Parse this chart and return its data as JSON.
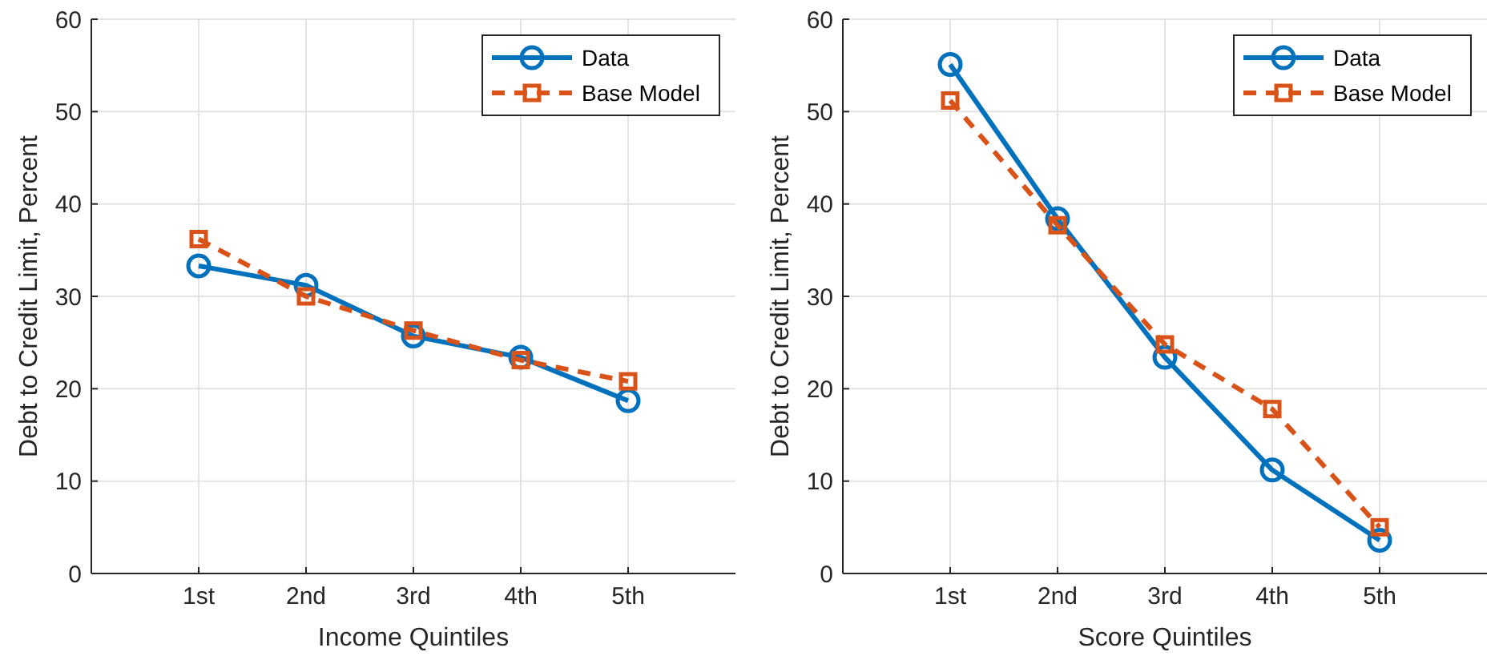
{
  "chart_data": [
    {
      "type": "line",
      "xlabel": "Income Quintiles",
      "ylabel": "Debt to Credit Limit, Percent",
      "categories": [
        "1st",
        "2nd",
        "3rd",
        "4th",
        "5th"
      ],
      "ylim": [
        0,
        60
      ],
      "yticks": [
        0,
        10,
        20,
        30,
        40,
        50,
        60
      ],
      "grid": true,
      "legend": "top right",
      "series": [
        {
          "name": "Data",
          "color": "#0072bd",
          "values": [
            33.3,
            31.2,
            25.7,
            23.4,
            18.7
          ],
          "marker": "circle",
          "line_style": "solid"
        },
        {
          "name": "Base Model",
          "color": "#d95319",
          "values": [
            36.2,
            30.0,
            26.3,
            23.1,
            20.8
          ],
          "marker": "square",
          "line_style": "dashed"
        }
      ]
    },
    {
      "type": "line",
      "xlabel": "Score Quintiles",
      "ylabel": "Debt to Credit Limit, Percent",
      "categories": [
        "1st",
        "2nd",
        "3rd",
        "4th",
        "5th"
      ],
      "ylim": [
        0,
        60
      ],
      "yticks": [
        0,
        10,
        20,
        30,
        40,
        50,
        60
      ],
      "grid": true,
      "legend": "top right",
      "series": [
        {
          "name": "Data",
          "color": "#0072bd",
          "values": [
            55.1,
            38.4,
            23.4,
            11.2,
            3.6
          ],
          "marker": "circle",
          "line_style": "solid"
        },
        {
          "name": "Base Model",
          "color": "#d95319",
          "values": [
            51.2,
            37.7,
            24.8,
            17.8,
            5.0
          ],
          "marker": "square",
          "line_style": "dashed"
        }
      ]
    }
  ]
}
